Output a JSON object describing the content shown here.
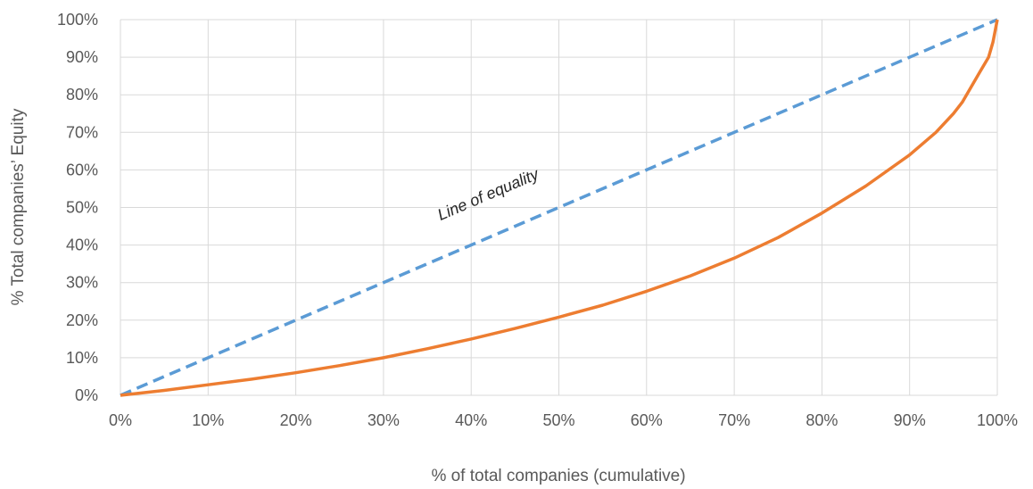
{
  "chart_data": {
    "type": "line",
    "title": "",
    "xlabel": "% of total companies (cumulative)",
    "ylabel": "% Total companies’ Equity",
    "xlim": [
      0,
      100
    ],
    "ylim": [
      0,
      100
    ],
    "x_ticks": [
      "0%",
      "10%",
      "20%",
      "30%",
      "40%",
      "50%",
      "60%",
      "70%",
      "80%",
      "90%",
      "100%"
    ],
    "y_ticks": [
      "0%",
      "10%",
      "20%",
      "30%",
      "40%",
      "50%",
      "60%",
      "70%",
      "80%",
      "90%",
      "100%"
    ],
    "grid": true,
    "legend": "none",
    "series": [
      {
        "color": "#5B9BD5",
        "style": "dashed",
        "x": [
          0,
          100
        ],
        "y": [
          0,
          100
        ]
      },
      {
        "color": "#ED7D31",
        "style": "solid",
        "x": [
          0,
          5,
          10,
          15,
          20,
          25,
          30,
          35,
          40,
          45,
          50,
          55,
          60,
          65,
          70,
          75,
          80,
          85,
          90,
          93,
          95,
          96,
          97,
          98,
          99,
          99.5,
          100
        ],
        "y": [
          0,
          1.3,
          2.8,
          4.3,
          6,
          7.9,
          10,
          12.4,
          15,
          17.8,
          20.8,
          24,
          27.7,
          31.8,
          36.5,
          42,
          48.5,
          55.7,
          64,
          70,
          75,
          78,
          82,
          86,
          90,
          94,
          100
        ]
      }
    ],
    "annotations": [
      {
        "text": "Line of equality",
        "x": 36.5,
        "y": 46.5
      }
    ]
  }
}
